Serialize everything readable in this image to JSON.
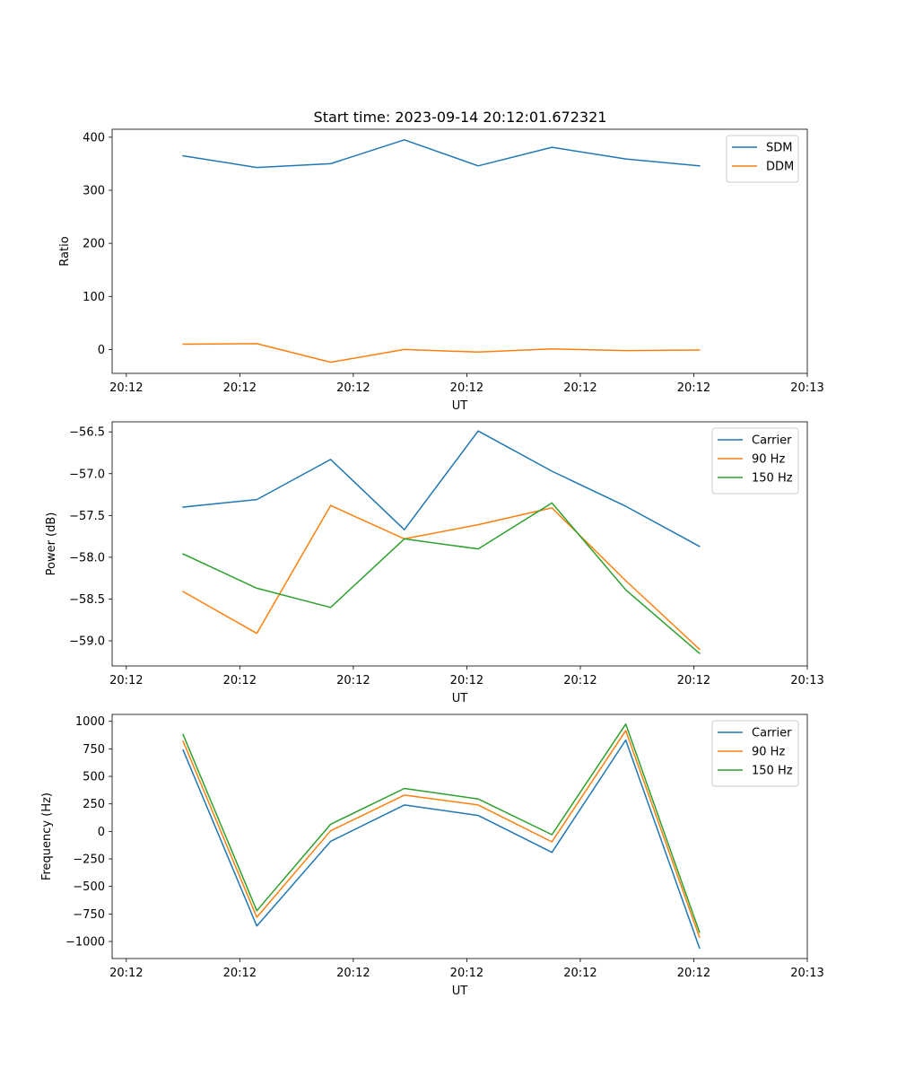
{
  "title": "Start time: 2023-09-14 20:12:01.672321",
  "colors": {
    "blue": "#1f77b4",
    "orange": "#ff7f0e",
    "green": "#2ca02c"
  },
  "chart_data": [
    {
      "type": "line",
      "xlabel": "UT",
      "ylabel": "Ratio",
      "x_ticks": [
        "20:12",
        "20:12",
        "20:12",
        "20:12",
        "20:12",
        "20:12",
        "20:12"
      ],
      "x_tick_labels": [
        "20:12",
        "20:12",
        "20:12",
        "20:12",
        "20:12",
        "20:12",
        "20:13"
      ],
      "x_tick_values": [
        0,
        2,
        4,
        6,
        8,
        10,
        12
      ],
      "xlim": [
        -0.25,
        12
      ],
      "ylim": [
        -45,
        415
      ],
      "y_ticks": [
        0,
        100,
        200,
        300,
        400
      ],
      "y_tick_labels": [
        "0",
        "100",
        "200",
        "300",
        "400"
      ],
      "x": [
        1,
        2.3,
        3.6,
        4.9,
        6.2,
        7.5,
        8.8,
        10.1
      ],
      "legend": "top-right",
      "series": [
        {
          "name": "SDM",
          "color": "#1f77b4",
          "values": [
            365,
            343,
            350,
            395,
            346,
            381,
            359,
            346
          ]
        },
        {
          "name": "DDM",
          "color": "#ff7f0e",
          "values": [
            10,
            11,
            -24,
            0,
            -5,
            1,
            -2,
            -1
          ]
        }
      ]
    },
    {
      "type": "line",
      "xlabel": "UT",
      "ylabel": "Power (dB)",
      "x_tick_labels": [
        "20:12",
        "20:12",
        "20:12",
        "20:12",
        "20:12",
        "20:12",
        "20:13"
      ],
      "x_tick_values": [
        0,
        2,
        4,
        6,
        8,
        10,
        12
      ],
      "xlim": [
        -0.25,
        12
      ],
      "ylim": [
        -59.3,
        -56.38
      ],
      "y_ticks": [
        -59.0,
        -58.5,
        -58.0,
        -57.5,
        -57.0,
        -56.5
      ],
      "y_tick_labels": [
        "−59.0",
        "−58.5",
        "−58.0",
        "−57.5",
        "−57.0",
        "−56.5"
      ],
      "x": [
        1,
        2.3,
        3.6,
        4.9,
        6.2,
        7.5,
        8.8,
        10.1
      ],
      "legend": "top-right",
      "series": [
        {
          "name": "Carrier",
          "color": "#1f77b4",
          "values": [
            -57.4,
            -57.31,
            -56.83,
            -57.67,
            -56.49,
            -56.97,
            -57.39,
            -57.87
          ]
        },
        {
          "name": "90 Hz",
          "color": "#ff7f0e",
          "values": [
            -58.41,
            -58.91,
            -57.38,
            -57.78,
            -57.61,
            -57.41,
            -58.28,
            -59.1
          ]
        },
        {
          "name": "150 Hz",
          "color": "#2ca02c",
          "values": [
            -57.96,
            -58.37,
            -58.6,
            -57.78,
            -57.9,
            -57.35,
            -58.39,
            -59.15
          ]
        }
      ]
    },
    {
      "type": "line",
      "xlabel": "UT",
      "ylabel": "Frequency (Hz)",
      "x_tick_labels": [
        "20:12",
        "20:12",
        "20:12",
        "20:12",
        "20:12",
        "20:12",
        "20:13"
      ],
      "x_tick_values": [
        0,
        2,
        4,
        6,
        8,
        10,
        12
      ],
      "xlim": [
        -0.25,
        12
      ],
      "ylim": [
        -1155,
        1063
      ],
      "y_ticks": [
        -1000,
        -750,
        -500,
        -250,
        0,
        250,
        500,
        750,
        1000
      ],
      "y_tick_labels": [
        "−1000",
        "−750",
        "−500",
        "−250",
        "0",
        "250",
        "500",
        "750",
        "1000"
      ],
      "x": [
        1,
        2.3,
        3.6,
        4.9,
        6.2,
        7.5,
        8.8,
        10.1
      ],
      "legend": "top-right",
      "series": [
        {
          "name": "Carrier",
          "color": "#1f77b4",
          "values": [
            740,
            -860,
            -90,
            240,
            145,
            -190,
            830,
            -1060
          ]
        },
        {
          "name": "90 Hz",
          "color": "#ff7f0e",
          "values": [
            820,
            -780,
            5,
            330,
            240,
            -95,
            915,
            -960
          ]
        },
        {
          "name": "150 Hz",
          "color": "#2ca02c",
          "values": [
            880,
            -720,
            65,
            390,
            295,
            -30,
            975,
            -915
          ]
        }
      ]
    }
  ]
}
